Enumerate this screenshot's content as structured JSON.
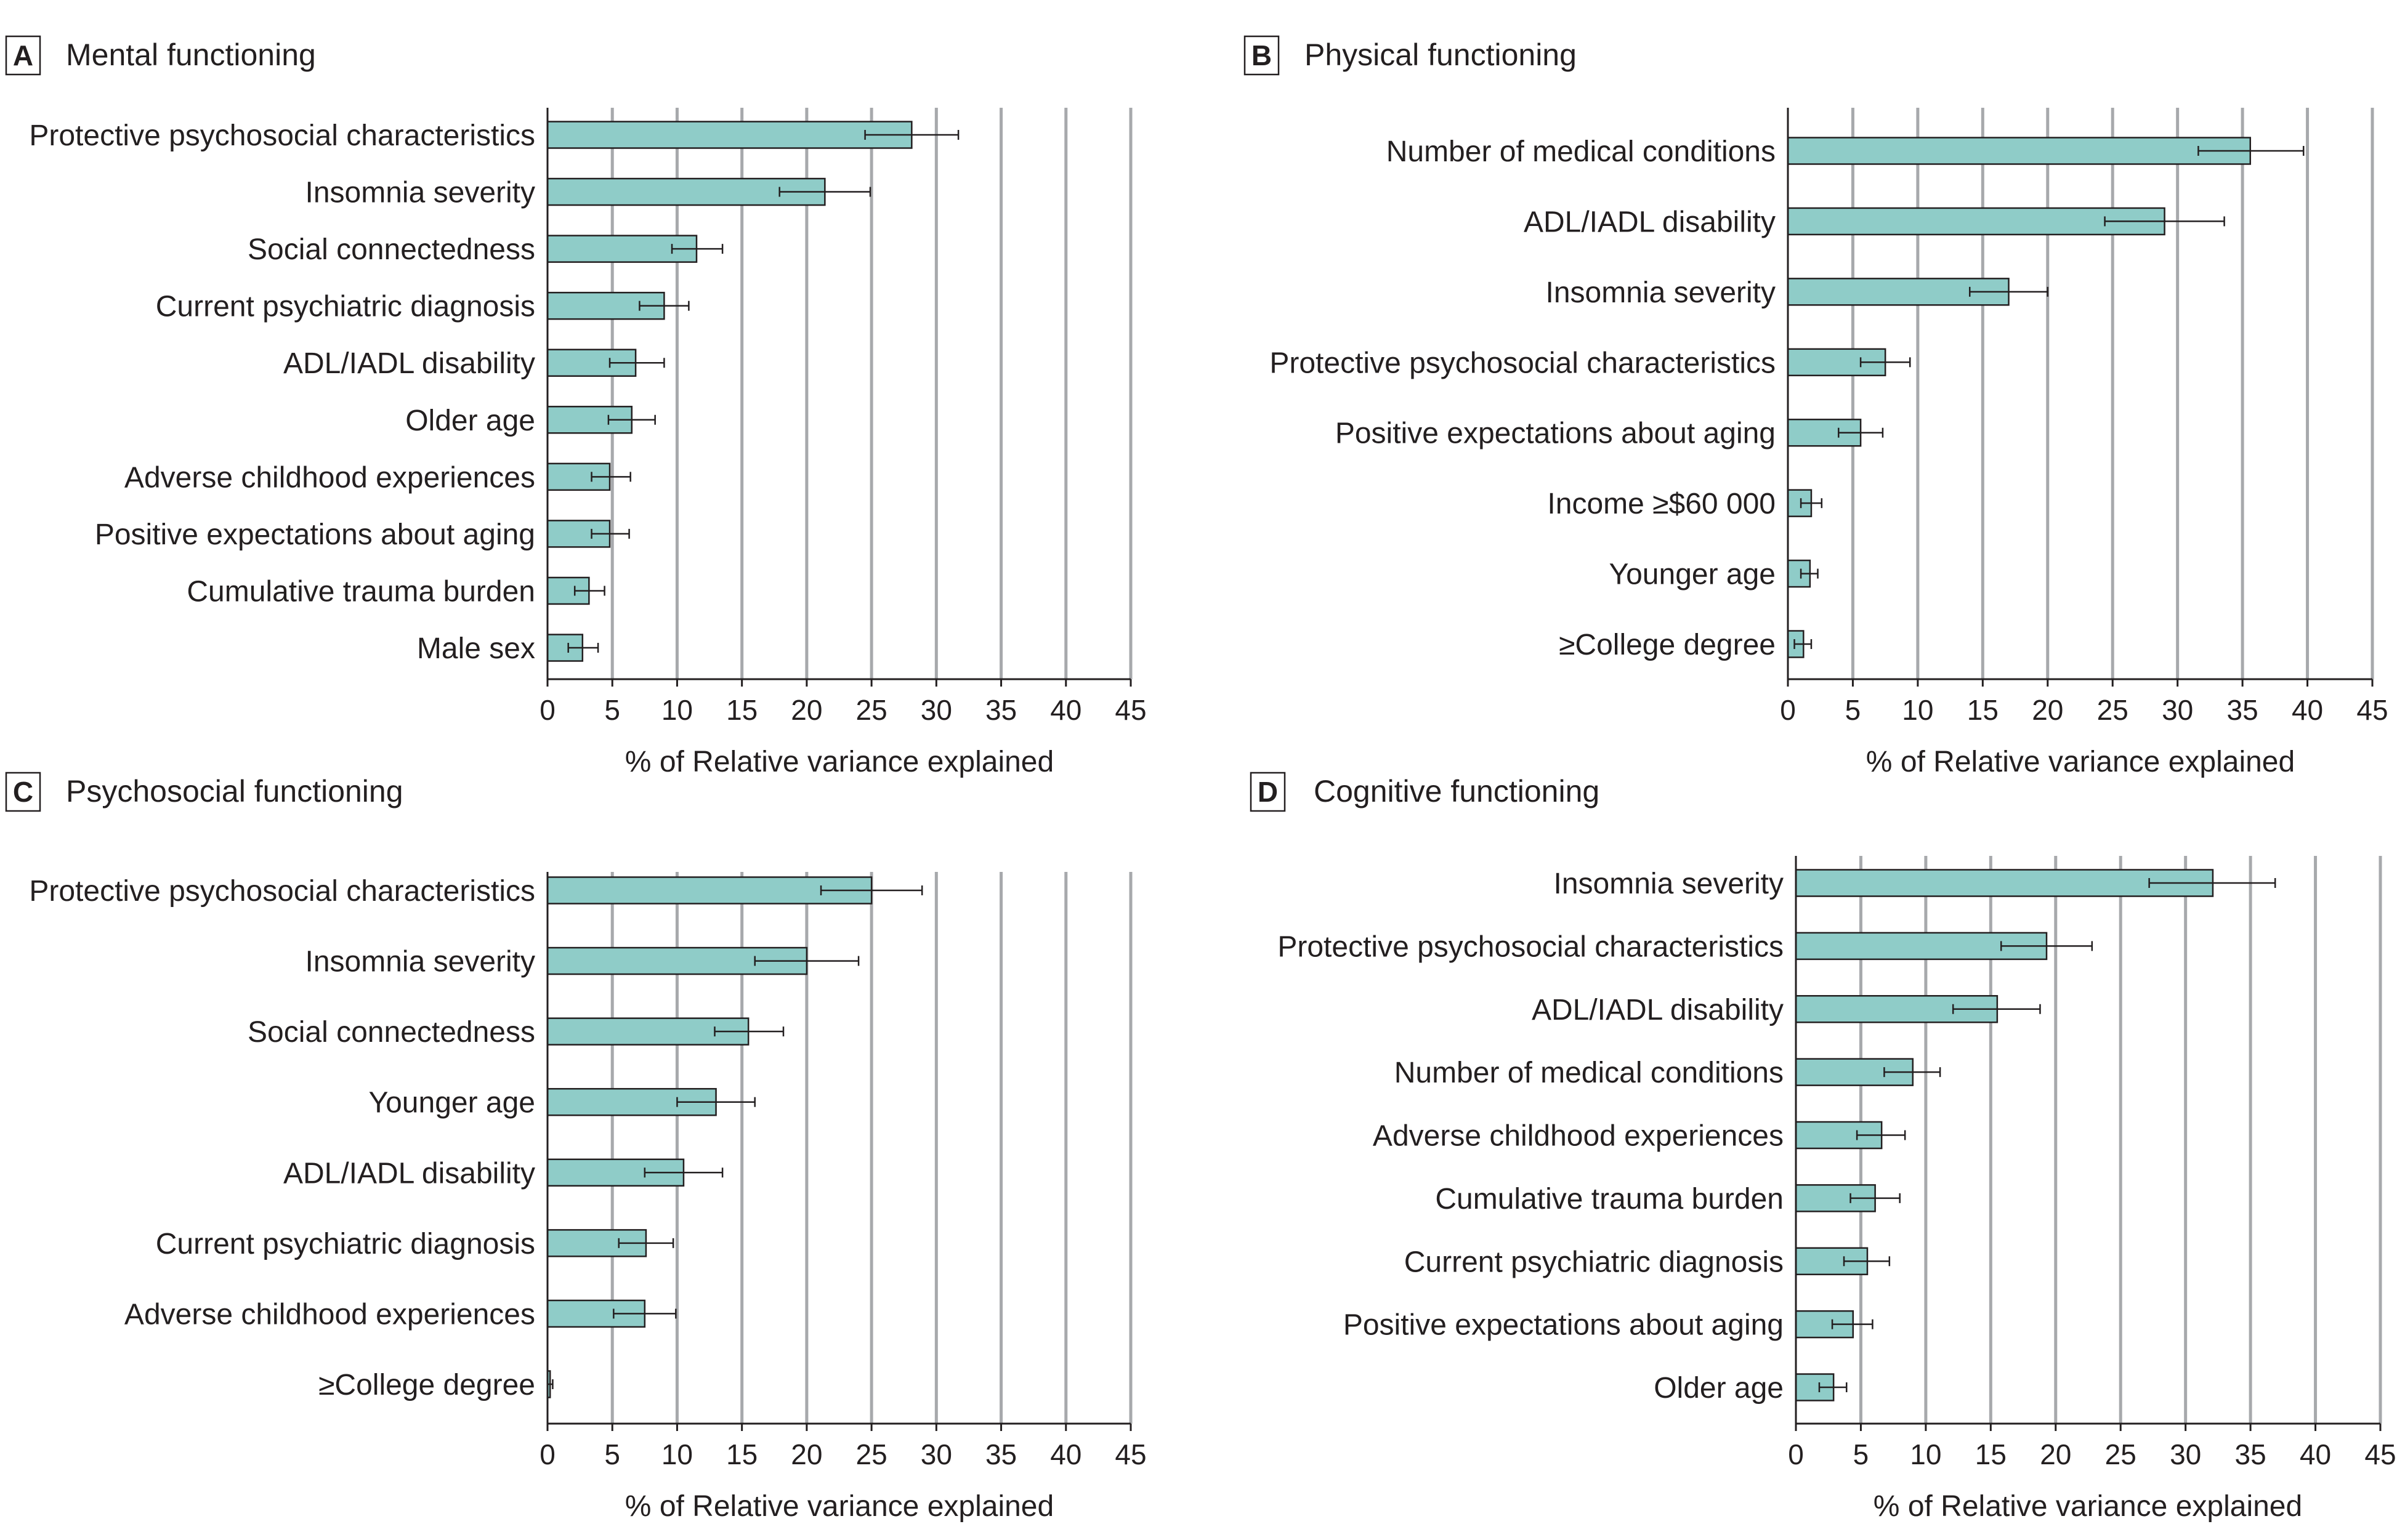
{
  "chart_data": [
    {
      "type": "bar",
      "orientation": "horizontal",
      "panel_letter": "A",
      "title": "Mental functioning",
      "xlabel": "% of Relative variance explained",
      "xlim": [
        0,
        45
      ],
      "xticks": [
        0,
        5,
        10,
        15,
        20,
        25,
        30,
        35,
        40,
        45
      ],
      "grid": true,
      "bar_color": "#8fccc8",
      "categories": [
        "Protective psychosocial characteristics",
        "Insomnia severity",
        "Social connectedness",
        "Current psychiatric diagnosis",
        "ADL/IADL disability",
        "Older age",
        "Adverse childhood experiences",
        "Positive expectations about aging",
        "Cumulative trauma burden",
        "Male sex"
      ],
      "values": [
        28.1,
        21.4,
        11.5,
        9.0,
        6.8,
        6.5,
        4.8,
        4.8,
        3.2,
        2.7
      ],
      "ci_low": [
        24.5,
        17.9,
        9.6,
        7.1,
        4.8,
        4.7,
        3.4,
        3.4,
        2.1,
        1.6
      ],
      "ci_high": [
        31.7,
        24.9,
        13.5,
        10.9,
        9.0,
        8.3,
        6.4,
        6.3,
        4.4,
        3.9
      ]
    },
    {
      "type": "bar",
      "orientation": "horizontal",
      "panel_letter": "B",
      "title": "Physical functioning",
      "xlabel": "% of Relative variance explained",
      "xlim": [
        0,
        45
      ],
      "xticks": [
        0,
        5,
        10,
        15,
        20,
        25,
        30,
        35,
        40,
        45
      ],
      "grid": true,
      "bar_color": "#8fccc8",
      "categories": [
        "Number of medical conditions",
        "ADL/IADL disability",
        "Insomnia severity",
        "Protective psychosocial characteristics",
        "Positive expectations about aging",
        "Income ≥$60 000",
        "Younger age",
        "≥College degree"
      ],
      "values": [
        35.6,
        29.0,
        17.0,
        7.5,
        5.6,
        1.8,
        1.7,
        1.2
      ],
      "ci_low": [
        31.6,
        24.4,
        14.0,
        5.6,
        3.9,
        1.0,
        1.0,
        0.5
      ],
      "ci_high": [
        39.7,
        33.6,
        20.0,
        9.4,
        7.3,
        2.6,
        2.3,
        1.8
      ]
    },
    {
      "type": "bar",
      "orientation": "horizontal",
      "panel_letter": "C",
      "title": "Psychosocial functioning",
      "xlabel": "% of Relative variance explained",
      "xlim": [
        0,
        45
      ],
      "xticks": [
        0,
        5,
        10,
        15,
        20,
        25,
        30,
        35,
        40,
        45
      ],
      "grid": true,
      "bar_color": "#8fccc8",
      "categories": [
        "Protective psychosocial characteristics",
        "Insomnia severity",
        "Social connectedness",
        "Younger age",
        "ADL/IADL disability",
        "Current psychiatric diagnosis",
        "Adverse childhood experiences",
        "≥College degree"
      ],
      "values": [
        25.0,
        20.0,
        15.5,
        13.0,
        10.5,
        7.6,
        7.5,
        0.2
      ],
      "ci_low": [
        21.1,
        16.0,
        12.9,
        10.0,
        7.5,
        5.5,
        5.1,
        0.0
      ],
      "ci_high": [
        28.9,
        24.0,
        18.2,
        16.0,
        13.5,
        9.7,
        9.9,
        0.4
      ]
    },
    {
      "type": "bar",
      "orientation": "horizontal",
      "panel_letter": "D",
      "title": "Cognitive functioning",
      "xlabel": "% of Relative variance explained",
      "xlim": [
        0,
        45
      ],
      "xticks": [
        0,
        5,
        10,
        15,
        20,
        25,
        30,
        35,
        40,
        45
      ],
      "grid": true,
      "bar_color": "#8fccc8",
      "categories": [
        "Insomnia severity",
        "Protective psychosocial characteristics",
        "ADL/IADL disability",
        "Number of medical conditions",
        "Adverse childhood experiences",
        "Cumulative trauma burden",
        "Current psychiatric diagnosis",
        "Positive expectations about aging",
        "Older age"
      ],
      "values": [
        32.1,
        19.3,
        15.5,
        9.0,
        6.6,
        6.1,
        5.5,
        4.4,
        2.9
      ],
      "ci_low": [
        27.2,
        15.8,
        12.1,
        6.8,
        4.7,
        4.2,
        3.7,
        2.8,
        1.8
      ],
      "ci_high": [
        36.9,
        22.8,
        18.8,
        11.1,
        8.4,
        8.0,
        7.2,
        5.9,
        3.9
      ]
    }
  ]
}
